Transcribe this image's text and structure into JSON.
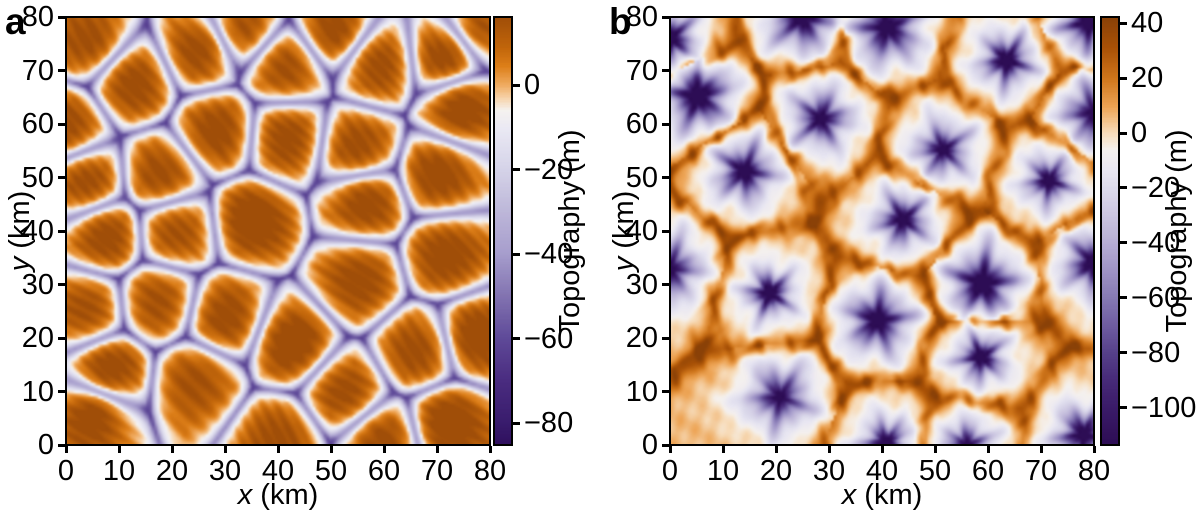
{
  "figure": {
    "background": "#ffffff",
    "text_color": "#000000"
  },
  "chart_data": [
    {
      "type": "heatmap",
      "panel_label": "a",
      "description": "Steady-state landscape: convex orange hills separated by a narrow purple valley drainage network (Voronoi-like cells)",
      "x_axis": {
        "var": "x",
        "unit": " (km)",
        "min": 0,
        "max": 80,
        "ticks": [
          0,
          10,
          20,
          30,
          40,
          50,
          60,
          70,
          80
        ]
      },
      "y_axis": {
        "var": "y",
        "unit": " (km)",
        "min": 0,
        "max": 80,
        "ticks": [
          0,
          10,
          20,
          30,
          40,
          50,
          60,
          70,
          80
        ]
      },
      "colorbar": {
        "label": "Topography (m)",
        "vmax": 16.1,
        "vmin": -85.2,
        "ticks": [
          0,
          -20,
          -40,
          -60,
          -80
        ]
      },
      "colormap_stops": [
        [
          0.0,
          "#a04e08"
        ],
        [
          0.07,
          "#c1650a"
        ],
        [
          0.115,
          "#dd7f19"
        ],
        [
          0.159,
          "#f0ac62"
        ],
        [
          0.19,
          "#f7d4ad"
        ],
        [
          0.218,
          "#f5f2ef"
        ],
        [
          0.26,
          "#eae9f4"
        ],
        [
          0.357,
          "#d5d3e8"
        ],
        [
          0.455,
          "#bdb7d9"
        ],
        [
          0.551,
          "#a79ecd"
        ],
        [
          0.65,
          "#8374b1"
        ],
        [
          0.75,
          "#5f4a99"
        ],
        [
          0.85,
          "#4a2c80"
        ],
        [
          0.949,
          "#391c6d"
        ],
        [
          1.0,
          "#2f0f5e"
        ]
      ],
      "field": {
        "pattern": "hills",
        "rng_seed": 11,
        "cell_centers_km": [
          [
            12.5,
            67.9
          ],
          [
            25.4,
            74.1
          ],
          [
            41.4,
            70.7
          ],
          [
            59,
            71.3
          ],
          [
            71.5,
            72.8
          ],
          [
            74.7,
            62.9
          ],
          [
            28.5,
            58.5
          ],
          [
            41.7,
            57.3
          ],
          [
            54.9,
            55.4
          ],
          [
            70.3,
            50.7
          ],
          [
            3.8,
            49.2
          ],
          [
            17.9,
            50.4
          ],
          [
            7.5,
            39.2
          ],
          [
            20.7,
            40.1
          ],
          [
            35.1,
            42
          ],
          [
            56.5,
            45.5
          ],
          [
            55.2,
            30.8
          ],
          [
            71.8,
            35.4
          ],
          [
            3.8,
            25.2
          ],
          [
            17.3,
            26.7
          ],
          [
            30.1,
            23.9
          ],
          [
            42.7,
            19
          ],
          [
            24.5,
            12.1
          ],
          [
            8.2,
            14
          ],
          [
            52.7,
            9.6
          ],
          [
            66.5,
            17.7
          ],
          [
            77.2,
            20.2
          ],
          [
            72.1,
            4
          ],
          [
            59.6,
            0.9
          ],
          [
            40.2,
            0.9
          ],
          [
            33.2,
            78.1
          ],
          [
            50.8,
            77.5
          ],
          [
            78.4,
            78.1
          ],
          [
            0,
            59.4
          ],
          [
            4.5,
            75.5
          ],
          [
            5,
            5.5
          ]
        ]
      }
    },
    {
      "type": "heatmap",
      "panel_label": "b",
      "description": "Inverted landscape: purple star-shaped pits at cell centres with pale halos, linked by an orange ridge network with dark knots",
      "x_axis": {
        "var": "x",
        "unit": " (km)",
        "min": 0,
        "max": 80,
        "ticks": [
          0,
          10,
          20,
          30,
          40,
          50,
          60,
          70,
          80
        ]
      },
      "y_axis": {
        "var": "y",
        "unit": " (km)",
        "min": 0,
        "max": 80,
        "ticks": [
          0,
          10,
          20,
          30,
          40,
          50,
          60,
          70,
          80
        ]
      },
      "colorbar": {
        "label": "Topography (m)",
        "vmax": 42.2,
        "vmin": -113.5,
        "ticks": [
          40,
          20,
          0,
          -20,
          -40,
          -60,
          -80,
          -100
        ]
      },
      "colormap_stops": [
        [
          0.0,
          "#8a4107"
        ],
        [
          0.07,
          "#a85106"
        ],
        [
          0.143,
          "#d0761b"
        ],
        [
          0.21,
          "#eda455"
        ],
        [
          0.271,
          "#f7dcba"
        ],
        [
          0.31,
          "#f5f1ee"
        ],
        [
          0.36,
          "#e9e7f2"
        ],
        [
          0.4,
          "#dddbec"
        ],
        [
          0.47,
          "#c9c3df"
        ],
        [
          0.529,
          "#b6aed4"
        ],
        [
          0.6,
          "#9c90c4"
        ],
        [
          0.657,
          "#867ab4"
        ],
        [
          0.72,
          "#6f5da2"
        ],
        [
          0.786,
          "#564089"
        ],
        [
          0.85,
          "#472a78"
        ],
        [
          0.914,
          "#3a1b69"
        ],
        [
          1.0,
          "#2d0d55"
        ]
      ],
      "field": {
        "pattern": "pits",
        "rng_seed": 23,
        "cell_centers_km": [
          [
            41,
            78
          ],
          [
            79,
            79
          ],
          [
            63.5,
            71.9
          ],
          [
            5.3,
            65.2
          ],
          [
            28.5,
            61
          ],
          [
            51.5,
            55.2
          ],
          [
            14.1,
            51.1
          ],
          [
            71.5,
            49.4
          ],
          [
            43.9,
            42.1
          ],
          [
            0,
            33
          ],
          [
            18.8,
            28.4
          ],
          [
            59,
            30.2
          ],
          [
            39.2,
            23.3
          ],
          [
            58.7,
            16.4
          ],
          [
            20.7,
            9
          ],
          [
            40.8,
            0.5
          ],
          [
            78,
            2
          ],
          [
            80,
            34
          ],
          [
            56,
            0
          ],
          [
            25,
            80
          ],
          [
            0,
            76
          ],
          [
            80,
            62
          ]
        ]
      }
    }
  ]
}
